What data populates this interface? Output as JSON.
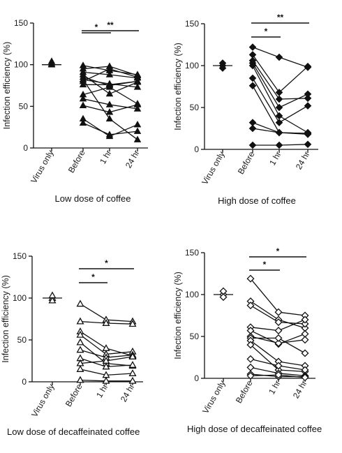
{
  "chart_data": [
    {
      "type": "scatter",
      "title": "Low dose of coffee",
      "ylabel": "Infection efficiency (%)",
      "ylim": [
        0,
        150
      ],
      "yticks": [
        0,
        50,
        100,
        150
      ],
      "categories": [
        "Virus only",
        "Before",
        "1 hr",
        "24 hr"
      ],
      "marker": "filled-triangle",
      "color": "#111111",
      "virus_only": [
        100,
        101,
        104
      ],
      "virus_only_mean": 100,
      "paired_lines": [
        [
          99,
          93,
          88
        ],
        [
          95,
          98,
          87
        ],
        [
          91,
          88,
          84
        ],
        [
          88,
          65,
          79
        ],
        [
          85,
          75,
          80
        ],
        [
          82,
          77,
          73
        ],
        [
          80,
          95,
          85
        ],
        [
          76,
          76,
          80
        ],
        [
          64,
          73,
          53
        ],
        [
          59,
          52,
          47
        ],
        [
          51,
          43,
          52
        ],
        [
          35,
          14,
          28
        ],
        [
          30,
          16,
          20
        ],
        [
          82,
          35,
          10
        ]
      ],
      "significance": [
        {
          "from": "Before",
          "to": "1 hr",
          "label": "*"
        },
        {
          "from": "Before",
          "to": "24 hr",
          "label": "**"
        }
      ]
    },
    {
      "type": "scatter",
      "title": "High dose of coffee",
      "ylabel": "Infection efficiency (%)",
      "ylim": [
        0,
        150
      ],
      "yticks": [
        0,
        50,
        100,
        150
      ],
      "categories": [
        "Virus only",
        "Before",
        "1 hr",
        "24 hr"
      ],
      "marker": "filled-diamond",
      "color": "#111111",
      "virus_only": [
        100,
        103,
        97
      ],
      "virus_only_mean": 100,
      "paired_lines": [
        [
          122,
          110,
          98
        ],
        [
          113,
          68,
          99
        ],
        [
          106,
          60,
          61
        ],
        [
          103,
          50,
          66
        ],
        [
          100,
          40,
          20
        ],
        [
          85,
          32,
          52
        ],
        [
          76,
          20,
          18
        ],
        [
          32,
          20,
          19
        ],
        [
          25,
          20,
          19
        ],
        [
          5,
          5,
          6
        ]
      ],
      "significance": [
        {
          "from": "Before",
          "to": "1 hr",
          "label": "*"
        },
        {
          "from": "Before",
          "to": "24 hr",
          "label": "**"
        }
      ]
    },
    {
      "type": "scatter",
      "title": "Low dose of decaffeinated coffee",
      "ylabel": "Infection efficiency (%)",
      "ylim": [
        0,
        150
      ],
      "yticks": [
        0,
        50,
        100,
        150
      ],
      "categories": [
        "Virus only",
        "Before",
        "1 hr",
        "24 hr"
      ],
      "marker": "open-triangle",
      "color": "#111111",
      "virus_only": [
        100,
        97,
        103
      ],
      "virus_only_mean": 100,
      "paired_lines": [
        [
          93,
          74,
          72
        ],
        [
          72,
          70,
          69
        ],
        [
          60,
          40,
          31
        ],
        [
          56,
          33,
          36
        ],
        [
          47,
          22,
          19
        ],
        [
          38,
          29,
          32
        ],
        [
          28,
          18,
          20
        ],
        [
          22,
          25,
          30
        ],
        [
          15,
          8,
          10
        ],
        [
          2,
          1,
          1
        ]
      ],
      "significance": [
        {
          "from": "Before",
          "to": "1 hr",
          "label": "*"
        },
        {
          "from": "Before",
          "to": "24 hr",
          "label": "*"
        }
      ]
    },
    {
      "type": "scatter",
      "title": "High dose of decaffeinated coffee",
      "ylabel": "Infection efficiency (%)",
      "ylim": [
        0,
        150
      ],
      "yticks": [
        0,
        50,
        100,
        150
      ],
      "categories": [
        "Virus only",
        "Before",
        "1 hr",
        "24 hr"
      ],
      "marker": "open-diamond",
      "color": "#111111",
      "virus_only": [
        100,
        104,
        97
      ],
      "virus_only_mean": 100,
      "paired_lines": [
        [
          119,
          79,
          75
        ],
        [
          92,
          70,
          60
        ],
        [
          87,
          67,
          65
        ],
        [
          61,
          57,
          70
        ],
        [
          57,
          41,
          53
        ],
        [
          50,
          42,
          46
        ],
        [
          48,
          48,
          30
        ],
        [
          45,
          20,
          15
        ],
        [
          40,
          10,
          8
        ],
        [
          23,
          15,
          10
        ],
        [
          13,
          6,
          3
        ],
        [
          5,
          2,
          2
        ],
        [
          3,
          4,
          1
        ]
      ],
      "significance": [
        {
          "from": "Before",
          "to": "1 hr",
          "label": "*"
        },
        {
          "from": "Before",
          "to": "24 hr",
          "label": "*"
        }
      ]
    }
  ]
}
